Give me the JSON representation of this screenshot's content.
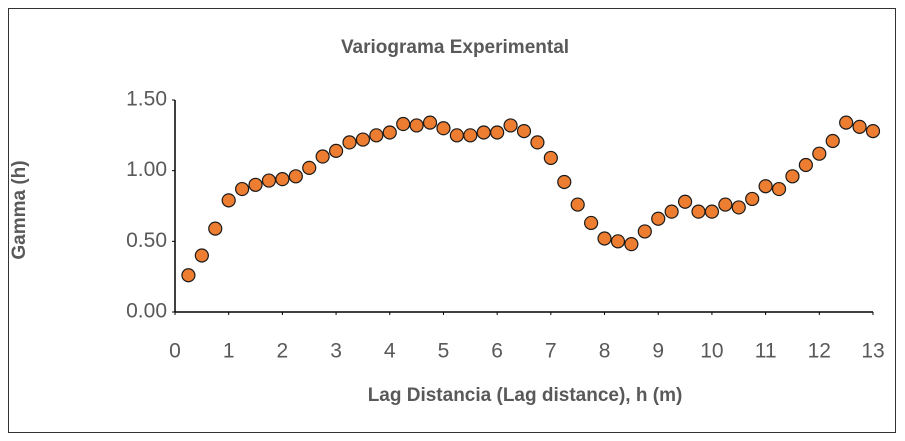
{
  "chart_data": {
    "type": "scatter",
    "title": "Variograma Experimental",
    "x_label": "Lag Distancia (Lag distance), h (m)",
    "y_label": "Gamma (h)",
    "x": [
      0.25,
      0.5,
      0.75,
      1.0,
      1.25,
      1.5,
      1.75,
      2.0,
      2.25,
      2.5,
      2.75,
      3.0,
      3.25,
      3.5,
      3.75,
      4.0,
      4.25,
      4.5,
      4.75,
      5.0,
      5.25,
      5.5,
      5.75,
      6.0,
      6.25,
      6.5,
      6.75,
      7.0,
      7.25,
      7.5,
      7.75,
      8.0,
      8.25,
      8.5,
      8.75,
      9.0,
      9.25,
      9.5,
      9.75,
      10.0,
      10.25,
      10.5,
      10.75,
      11.0,
      11.25,
      11.5,
      11.75,
      12.0,
      12.25,
      12.5,
      12.75,
      13.0
    ],
    "values": [
      0.26,
      0.4,
      0.59,
      0.79,
      0.87,
      0.9,
      0.93,
      0.94,
      0.96,
      1.02,
      1.1,
      1.14,
      1.2,
      1.22,
      1.25,
      1.27,
      1.33,
      1.32,
      1.34,
      1.3,
      1.25,
      1.25,
      1.27,
      1.27,
      1.32,
      1.28,
      1.2,
      1.09,
      0.92,
      0.76,
      0.63,
      0.52,
      0.5,
      0.48,
      0.57,
      0.66,
      0.71,
      0.78,
      0.71,
      0.71,
      0.76,
      0.74,
      0.8,
      0.89,
      0.87,
      0.96,
      1.04,
      1.12,
      1.21,
      1.34,
      1.31,
      1.28
    ],
    "color": "#ed7d31",
    "xlim": [
      0,
      13
    ],
    "xticks": [
      0,
      1,
      2,
      3,
      4,
      5,
      6,
      7,
      8,
      9,
      10,
      11,
      12,
      13
    ],
    "ylim": [
      0,
      1.5
    ],
    "yticks": [
      {
        "value": 0,
        "label": "0.00"
      },
      {
        "value": 0.5,
        "label": "0.50"
      },
      {
        "value": 1,
        "label": "1.00"
      },
      {
        "value": 1.5,
        "label": "1.50"
      }
    ],
    "grid": false
  }
}
